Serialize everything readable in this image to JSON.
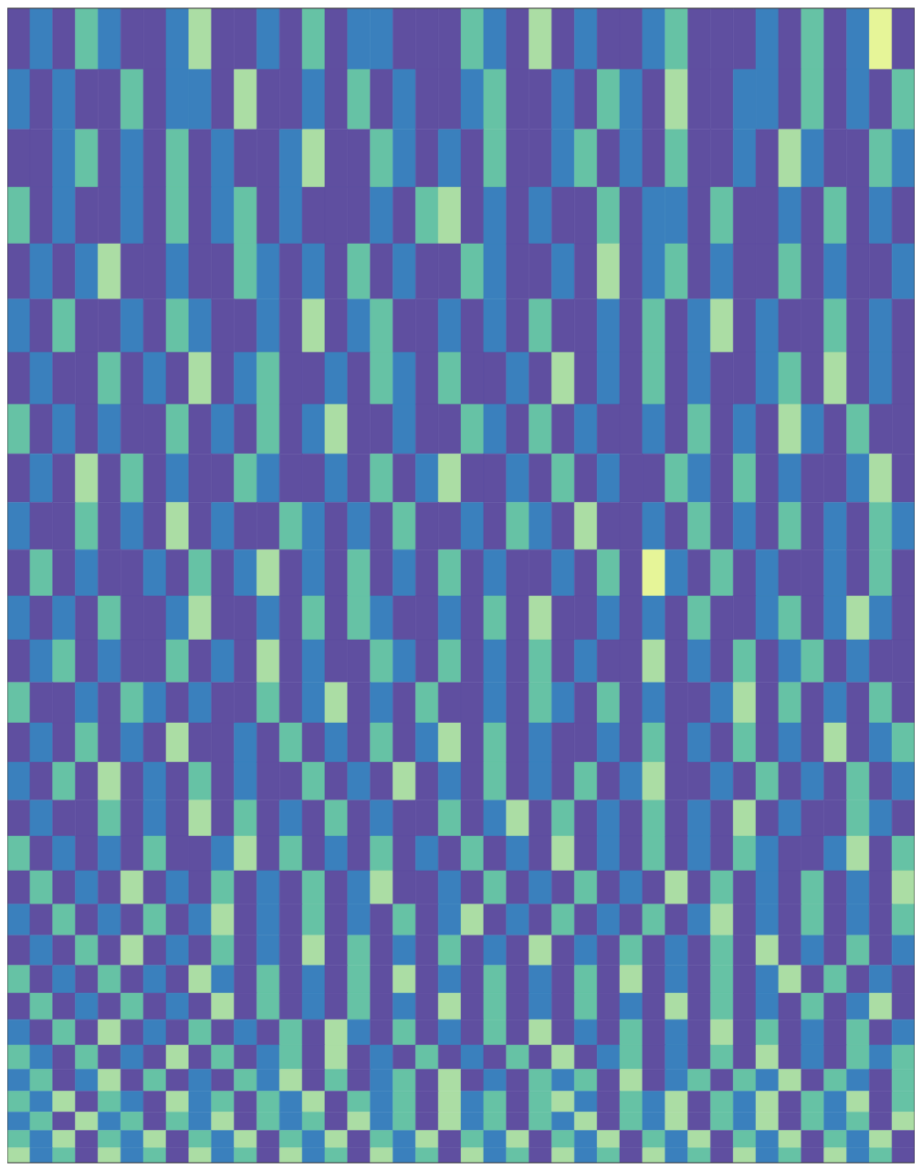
{
  "chart_data": {
    "type": "heatmap",
    "tick_labels": false,
    "ylim": [
      0,
      100
    ],
    "yticks": [
      44,
      76,
      95
    ],
    "y_bins": [
      0,
      5.3,
      10.5,
      15.5,
      20.4,
      25.2,
      29.8,
      34.3,
      38.6,
      42.8,
      46.9,
      50.9,
      54.7,
      58.4,
      61.9,
      65.3,
      68.6,
      71.7,
      74.7,
      77.6,
      80.3,
      82.9,
      85.3,
      87.6,
      89.8,
      91.9,
      93.8,
      95.6,
      97.2,
      98.7,
      100
    ],
    "colors": [
      "#5f4fa0",
      "#3a80bd",
      "#66c2a5",
      "#abdda4",
      "#e6f598"
    ],
    "cells": [
      [
        0,
        1,
        0,
        2,
        1,
        0,
        0,
        1,
        3,
        0,
        0,
        1,
        0,
        2,
        0,
        1,
        1,
        0,
        0,
        0,
        2,
        1,
        0,
        3,
        0,
        1,
        0,
        0,
        1,
        2,
        0,
        0,
        0,
        1,
        0,
        2,
        0,
        1,
        4,
        0
      ],
      [
        1,
        0,
        1,
        0,
        0,
        2,
        0,
        1,
        1,
        0,
        3,
        0,
        0,
        1,
        0,
        2,
        0,
        1,
        0,
        0,
        1,
        2,
        0,
        0,
        1,
        0,
        2,
        1,
        0,
        3,
        0,
        0,
        1,
        1,
        0,
        2,
        0,
        1,
        0,
        2
      ],
      [
        0,
        0,
        1,
        2,
        0,
        1,
        0,
        2,
        0,
        1,
        0,
        0,
        1,
        3,
        0,
        0,
        2,
        1,
        0,
        1,
        0,
        2,
        0,
        0,
        1,
        2,
        0,
        1,
        0,
        2,
        0,
        0,
        1,
        0,
        3,
        1,
        0,
        0,
        2,
        1
      ],
      [
        2,
        0,
        1,
        0,
        0,
        1,
        0,
        2,
        0,
        1,
        2,
        0,
        1,
        0,
        0,
        0,
        1,
        0,
        2,
        3,
        0,
        1,
        0,
        1,
        0,
        0,
        2,
        0,
        1,
        1,
        0,
        2,
        0,
        0,
        1,
        0,
        2,
        0,
        1,
        0
      ],
      [
        0,
        1,
        0,
        1,
        3,
        0,
        0,
        1,
        0,
        0,
        2,
        1,
        0,
        1,
        0,
        2,
        0,
        1,
        0,
        0,
        2,
        1,
        0,
        0,
        1,
        0,
        3,
        0,
        1,
        2,
        0,
        1,
        0,
        0,
        2,
        0,
        1,
        0,
        0,
        1
      ],
      [
        1,
        0,
        2,
        0,
        0,
        1,
        0,
        2,
        1,
        0,
        0,
        1,
        0,
        3,
        0,
        1,
        2,
        0,
        0,
        1,
        0,
        1,
        0,
        2,
        0,
        0,
        1,
        0,
        2,
        0,
        1,
        3,
        0,
        1,
        0,
        0,
        2,
        0,
        1,
        0
      ],
      [
        0,
        1,
        0,
        0,
        2,
        0,
        1,
        0,
        3,
        0,
        1,
        2,
        0,
        0,
        1,
        0,
        2,
        1,
        0,
        2,
        0,
        0,
        1,
        0,
        3,
        0,
        1,
        0,
        2,
        0,
        1,
        0,
        0,
        1,
        2,
        0,
        3,
        0,
        1,
        0
      ],
      [
        2,
        0,
        1,
        0,
        1,
        0,
        0,
        2,
        0,
        1,
        0,
        2,
        0,
        1,
        3,
        0,
        0,
        1,
        0,
        0,
        2,
        1,
        0,
        2,
        0,
        1,
        0,
        0,
        1,
        0,
        2,
        0,
        1,
        0,
        3,
        1,
        0,
        2,
        0,
        0
      ],
      [
        0,
        1,
        0,
        3,
        0,
        2,
        0,
        1,
        0,
        0,
        2,
        1,
        0,
        0,
        1,
        0,
        2,
        0,
        1,
        3,
        0,
        0,
        1,
        0,
        2,
        0,
        1,
        0,
        0,
        2,
        1,
        0,
        2,
        0,
        1,
        0,
        0,
        1,
        3,
        0
      ],
      [
        1,
        0,
        0,
        2,
        0,
        1,
        0,
        3,
        0,
        1,
        0,
        0,
        2,
        1,
        0,
        1,
        0,
        2,
        0,
        0,
        1,
        0,
        2,
        1,
        0,
        3,
        0,
        0,
        1,
        0,
        2,
        0,
        1,
        0,
        2,
        0,
        1,
        0,
        2,
        1
      ],
      [
        0,
        2,
        0,
        1,
        0,
        0,
        1,
        0,
        2,
        0,
        1,
        3,
        0,
        1,
        0,
        2,
        0,
        1,
        0,
        2,
        0,
        1,
        0,
        0,
        1,
        0,
        2,
        0,
        4,
        1,
        0,
        2,
        0,
        1,
        0,
        0,
        1,
        0,
        2,
        0
      ],
      [
        1,
        0,
        1,
        0,
        2,
        0,
        0,
        1,
        3,
        0,
        0,
        1,
        0,
        2,
        0,
        2,
        1,
        0,
        0,
        1,
        0,
        2,
        0,
        3,
        0,
        0,
        1,
        0,
        1,
        0,
        2,
        0,
        0,
        1,
        2,
        0,
        1,
        3,
        1,
        0
      ],
      [
        0,
        1,
        2,
        0,
        1,
        0,
        0,
        2,
        0,
        1,
        0,
        3,
        0,
        1,
        0,
        0,
        2,
        1,
        0,
        2,
        0,
        1,
        0,
        2,
        0,
        1,
        0,
        0,
        3,
        0,
        1,
        0,
        2,
        0,
        1,
        2,
        0,
        1,
        0,
        0
      ],
      [
        2,
        0,
        0,
        1,
        0,
        2,
        1,
        0,
        1,
        0,
        0,
        2,
        0,
        1,
        3,
        0,
        1,
        0,
        2,
        0,
        0,
        1,
        0,
        2,
        1,
        0,
        2,
        0,
        1,
        0,
        0,
        1,
        3,
        0,
        2,
        0,
        1,
        0,
        2,
        0
      ],
      [
        0,
        1,
        0,
        2,
        0,
        1,
        0,
        3,
        0,
        0,
        1,
        0,
        2,
        0,
        1,
        0,
        2,
        0,
        1,
        3,
        0,
        2,
        0,
        1,
        0,
        0,
        1,
        0,
        2,
        0,
        1,
        0,
        2,
        0,
        1,
        0,
        3,
        0,
        1,
        2
      ],
      [
        1,
        0,
        2,
        0,
        3,
        0,
        1,
        0,
        2,
        0,
        1,
        0,
        0,
        2,
        0,
        1,
        0,
        3,
        0,
        1,
        0,
        2,
        0,
        1,
        0,
        2,
        0,
        1,
        3,
        0,
        0,
        1,
        0,
        2,
        0,
        1,
        0,
        2,
        0,
        1
      ],
      [
        0,
        1,
        0,
        0,
        2,
        0,
        1,
        0,
        3,
        0,
        2,
        0,
        1,
        0,
        2,
        0,
        1,
        0,
        0,
        2,
        0,
        1,
        3,
        0,
        2,
        0,
        1,
        0,
        2,
        0,
        1,
        0,
        3,
        0,
        1,
        0,
        0,
        2,
        1,
        0
      ],
      [
        2,
        0,
        1,
        0,
        1,
        0,
        2,
        0,
        0,
        1,
        3,
        0,
        2,
        0,
        1,
        0,
        2,
        0,
        1,
        0,
        2,
        0,
        1,
        0,
        3,
        0,
        1,
        0,
        2,
        0,
        1,
        0,
        2,
        1,
        0,
        0,
        1,
        3,
        0,
        2
      ],
      [
        0,
        2,
        0,
        1,
        0,
        3,
        0,
        1,
        0,
        2,
        0,
        1,
        0,
        2,
        0,
        1,
        3,
        0,
        0,
        1,
        0,
        2,
        0,
        1,
        0,
        2,
        0,
        1,
        0,
        3,
        0,
        2,
        0,
        1,
        0,
        2,
        0,
        1,
        0,
        3
      ],
      [
        1,
        0,
        2,
        0,
        1,
        0,
        2,
        0,
        1,
        3,
        0,
        1,
        0,
        2,
        0,
        1,
        0,
        2,
        0,
        1,
        3,
        0,
        1,
        0,
        2,
        0,
        1,
        0,
        2,
        0,
        1,
        3,
        0,
        1,
        0,
        2,
        0,
        1,
        0,
        2
      ],
      [
        0,
        1,
        0,
        2,
        0,
        3,
        0,
        1,
        0,
        2,
        0,
        1,
        0,
        3,
        0,
        2,
        0,
        1,
        0,
        2,
        0,
        1,
        0,
        3,
        0,
        1,
        0,
        2,
        0,
        1,
        0,
        2,
        0,
        3,
        0,
        1,
        0,
        2,
        0,
        1
      ],
      [
        2,
        0,
        1,
        0,
        2,
        0,
        1,
        0,
        3,
        1,
        0,
        2,
        0,
        1,
        0,
        2,
        0,
        3,
        0,
        1,
        0,
        2,
        0,
        1,
        0,
        2,
        0,
        3,
        0,
        1,
        0,
        2,
        0,
        1,
        3,
        0,
        2,
        0,
        1,
        0
      ],
      [
        0,
        2,
        0,
        1,
        0,
        2,
        0,
        1,
        0,
        3,
        0,
        2,
        0,
        1,
        0,
        2,
        0,
        1,
        0,
        3,
        0,
        2,
        0,
        1,
        0,
        2,
        0,
        1,
        0,
        3,
        0,
        2,
        0,
        1,
        0,
        2,
        0,
        1,
        3,
        0
      ],
      [
        1,
        0,
        2,
        0,
        3,
        0,
        1,
        0,
        2,
        0,
        1,
        0,
        2,
        0,
        3,
        1,
        0,
        2,
        0,
        1,
        0,
        2,
        0,
        3,
        0,
        1,
        0,
        2,
        0,
        1,
        0,
        3,
        0,
        2,
        0,
        1,
        0,
        2,
        0,
        1
      ],
      [
        2,
        1,
        0,
        2,
        0,
        1,
        0,
        3,
        0,
        2,
        0,
        1,
        2,
        0,
        3,
        0,
        1,
        0,
        2,
        0,
        1,
        0,
        2,
        0,
        3,
        0,
        1,
        2,
        0,
        1,
        0,
        2,
        0,
        3,
        0,
        1,
        0,
        2,
        1,
        2
      ],
      [
        1,
        2,
        0,
        1,
        3,
        0,
        2,
        0,
        1,
        0,
        2,
        1,
        3,
        0,
        2,
        0,
        1,
        2,
        0,
        3,
        0,
        1,
        0,
        2,
        1,
        2,
        0,
        3,
        0,
        1,
        2,
        0,
        2,
        1,
        3,
        0,
        2,
        1,
        0,
        2
      ],
      [
        2,
        1,
        3,
        0,
        2,
        1,
        0,
        3,
        1,
        2,
        0,
        2,
        1,
        3,
        0,
        2,
        1,
        2,
        0,
        3,
        1,
        2,
        0,
        2,
        3,
        1,
        0,
        2,
        1,
        3,
        0,
        2,
        1,
        3,
        0,
        2,
        1,
        3,
        0,
        2
      ],
      [
        1,
        2,
        0,
        3,
        1,
        2,
        0,
        2,
        1,
        3,
        0,
        2,
        1,
        2,
        0,
        3,
        1,
        2,
        0,
        3,
        1,
        2,
        0,
        2,
        1,
        3,
        0,
        2,
        1,
        3,
        0,
        2,
        1,
        3,
        0,
        2,
        1,
        2,
        0,
        3
      ],
      [
        2,
        1,
        3,
        0,
        2,
        1,
        3,
        0,
        2,
        1,
        3,
        0,
        2,
        1,
        3,
        0,
        2,
        1,
        3,
        0,
        2,
        1,
        3,
        0,
        2,
        1,
        3,
        0,
        2,
        1,
        3,
        0,
        2,
        1,
        3,
        0,
        2,
        1,
        3,
        0
      ],
      [
        3,
        1,
        2,
        0,
        3,
        1,
        2,
        0,
        3,
        1,
        2,
        0,
        3,
        1,
        2,
        0,
        3,
        1,
        2,
        0,
        3,
        1,
        2,
        0,
        3,
        1,
        2,
        0,
        3,
        1,
        2,
        0,
        3,
        1,
        2,
        0,
        3,
        1,
        2,
        0
      ]
    ]
  }
}
